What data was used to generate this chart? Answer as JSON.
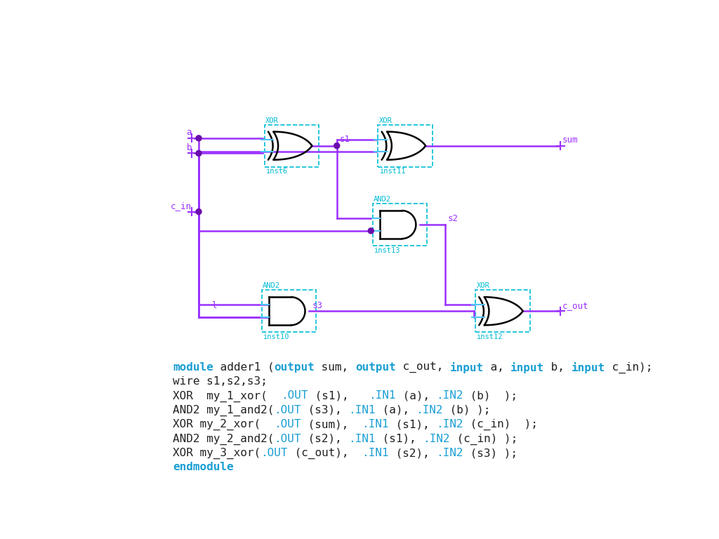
{
  "bg_color": "#ffffff",
  "wire_color": "#9b30ff",
  "gate_edge_color": "#000000",
  "box_color": "#00bcd4",
  "dot_color": "#6a0dad",
  "label_color": "#9b30ff",
  "text_keyword_blue": "#1a9fd4",
  "text_black": "#222222",
  "code_lines": [
    {
      "parts": [
        {
          "text": "module",
          "color": "#1a9fd4",
          "bold": true
        },
        {
          "text": " adder1 (",
          "color": "#222222",
          "bold": false
        },
        {
          "text": "output",
          "color": "#1a9fd4",
          "bold": true
        },
        {
          "text": " sum, ",
          "color": "#222222",
          "bold": false
        },
        {
          "text": "output",
          "color": "#1a9fd4",
          "bold": true
        },
        {
          "text": " c_out, ",
          "color": "#222222",
          "bold": false
        },
        {
          "text": "input",
          "color": "#1a9fd4",
          "bold": true
        },
        {
          "text": " a, ",
          "color": "#222222",
          "bold": false
        },
        {
          "text": "input",
          "color": "#1a9fd4",
          "bold": true
        },
        {
          "text": " b, ",
          "color": "#222222",
          "bold": false
        },
        {
          "text": "input",
          "color": "#1a9fd4",
          "bold": true
        },
        {
          "text": " c_in);",
          "color": "#222222",
          "bold": false
        }
      ]
    },
    {
      "parts": [
        {
          "text": "wire s1,s2,s3;",
          "color": "#222222",
          "bold": false
        }
      ]
    },
    {
      "parts": [
        {
          "text": "XOR  my_1_xor(  ",
          "color": "#222222",
          "bold": false
        },
        {
          "text": ".OUT",
          "color": "#1a9fd4",
          "bold": false
        },
        {
          "text": " (s1),   ",
          "color": "#222222",
          "bold": false
        },
        {
          "text": ".IN1",
          "color": "#1a9fd4",
          "bold": false
        },
        {
          "text": " (a), ",
          "color": "#222222",
          "bold": false
        },
        {
          "text": ".IN2",
          "color": "#1a9fd4",
          "bold": false
        },
        {
          "text": " (b)  );",
          "color": "#222222",
          "bold": false
        }
      ]
    },
    {
      "parts": [
        {
          "text": "AND2 my_1_and2(",
          "color": "#222222",
          "bold": false
        },
        {
          "text": ".OUT",
          "color": "#1a9fd4",
          "bold": false
        },
        {
          "text": " (s3), ",
          "color": "#222222",
          "bold": false
        },
        {
          "text": ".IN1",
          "color": "#1a9fd4",
          "bold": false
        },
        {
          "text": " (a), ",
          "color": "#222222",
          "bold": false
        },
        {
          "text": ".IN2",
          "color": "#1a9fd4",
          "bold": false
        },
        {
          "text": " (b) );",
          "color": "#222222",
          "bold": false
        }
      ]
    },
    {
      "parts": [
        {
          "text": "XOR my_2_xor(  ",
          "color": "#222222",
          "bold": false
        },
        {
          "text": ".OUT",
          "color": "#1a9fd4",
          "bold": false
        },
        {
          "text": " (sum),  ",
          "color": "#222222",
          "bold": false
        },
        {
          "text": ".IN1",
          "color": "#1a9fd4",
          "bold": false
        },
        {
          "text": " (s1), ",
          "color": "#222222",
          "bold": false
        },
        {
          "text": ".IN2",
          "color": "#1a9fd4",
          "bold": false
        },
        {
          "text": " (c_in)  );",
          "color": "#222222",
          "bold": false
        }
      ]
    },
    {
      "parts": [
        {
          "text": "AND2 my_2_and2(",
          "color": "#222222",
          "bold": false
        },
        {
          "text": ".OUT",
          "color": "#1a9fd4",
          "bold": false
        },
        {
          "text": " (s2), ",
          "color": "#222222",
          "bold": false
        },
        {
          "text": ".IN1",
          "color": "#1a9fd4",
          "bold": false
        },
        {
          "text": " (s1), ",
          "color": "#222222",
          "bold": false
        },
        {
          "text": ".IN2",
          "color": "#1a9fd4",
          "bold": false
        },
        {
          "text": " (c_in) );",
          "color": "#222222",
          "bold": false
        }
      ]
    },
    {
      "parts": [
        {
          "text": "XOR my_3_xor(",
          "color": "#222222",
          "bold": false
        },
        {
          "text": ".OUT",
          "color": "#1a9fd4",
          "bold": false
        },
        {
          "text": " (c_out),  ",
          "color": "#222222",
          "bold": false
        },
        {
          "text": ".IN1",
          "color": "#1a9fd4",
          "bold": false
        },
        {
          "text": " (s2), ",
          "color": "#222222",
          "bold": false
        },
        {
          "text": ".IN2",
          "color": "#1a9fd4",
          "bold": false
        },
        {
          "text": " (s3) );",
          "color": "#222222",
          "bold": false
        }
      ]
    },
    {
      "parts": [
        {
          "text": "endmodule",
          "color": "#1a9fd4",
          "bold": true
        }
      ]
    }
  ]
}
